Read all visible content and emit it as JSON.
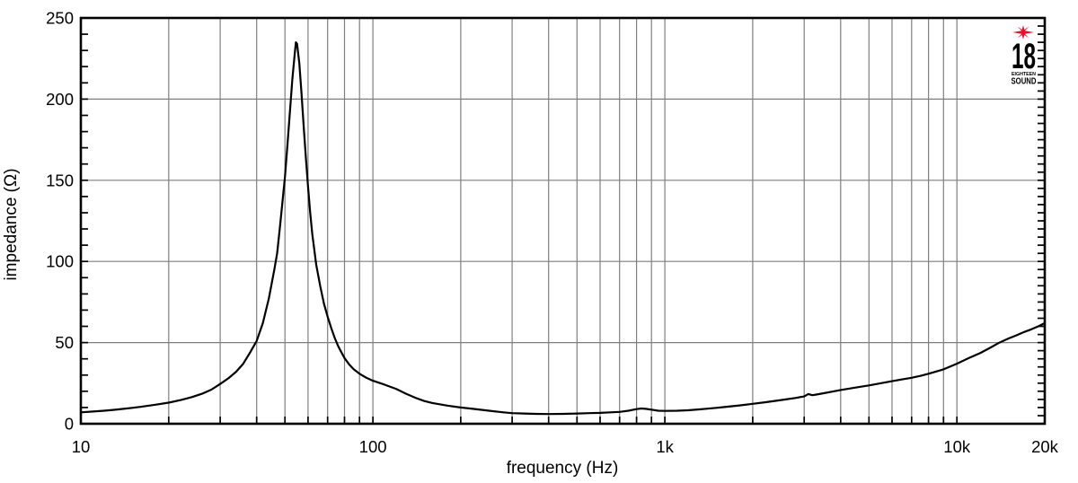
{
  "page": {
    "background": "#ffffff"
  },
  "colors": {
    "grid": "#7f7f7f",
    "axis": "#000000",
    "curve": "#000000",
    "background": "#ffffff",
    "logo_red": "#e8112d",
    "logo_black": "#111111"
  },
  "logo": {
    "star_icon": "starburst",
    "number": "18",
    "name_top": "EIGHTEEN",
    "name_bottom": "SOUND"
  },
  "chart_data": {
    "type": "line",
    "title": "",
    "xlabel": "frequency (Hz)",
    "ylabel": "impedance (Ω)",
    "x_scale": "log",
    "xlim": [
      10,
      20000
    ],
    "ylim": [
      0,
      250
    ],
    "grid": true,
    "legend_position": "none",
    "x_major_ticks": [
      {
        "value": 10,
        "label": "10"
      },
      {
        "value": 100,
        "label": "100"
      },
      {
        "value": 1000,
        "label": "1k"
      },
      {
        "value": 10000,
        "label": "10k"
      },
      {
        "value": 20000,
        "label": "20k"
      }
    ],
    "x_gridlines": [
      20,
      30,
      40,
      50,
      60,
      70,
      80,
      90,
      100,
      200,
      300,
      400,
      500,
      600,
      700,
      800,
      900,
      1000,
      2000,
      3000,
      4000,
      5000,
      6000,
      7000,
      8000,
      9000,
      10000,
      20000
    ],
    "y_major_ticks": [
      {
        "value": 0,
        "label": "0"
      },
      {
        "value": 50,
        "label": "50"
      },
      {
        "value": 100,
        "label": "100"
      },
      {
        "value": 150,
        "label": "150"
      },
      {
        "value": 200,
        "label": "200"
      },
      {
        "value": 250,
        "label": "250"
      }
    ],
    "y_gridlines": [
      50,
      100,
      150,
      200
    ],
    "y_minor_tick_step_left": 10,
    "y_minor_tick_step_right": 5,
    "series": [
      {
        "name": "impedance",
        "color": "#000000",
        "points": [
          [
            10,
            7
          ],
          [
            11,
            7.5
          ],
          [
            12,
            8
          ],
          [
            13,
            8.6
          ],
          [
            14,
            9.2
          ],
          [
            15,
            9.8
          ],
          [
            16,
            10.4
          ],
          [
            18,
            11.7
          ],
          [
            20,
            13
          ],
          [
            22,
            14.6
          ],
          [
            24,
            16.4
          ],
          [
            26,
            18.5
          ],
          [
            28,
            21
          ],
          [
            30,
            24.5
          ],
          [
            32,
            28
          ],
          [
            34,
            32
          ],
          [
            36,
            37
          ],
          [
            38,
            44
          ],
          [
            40,
            51
          ],
          [
            42,
            62
          ],
          [
            44,
            77
          ],
          [
            46,
            95
          ],
          [
            47,
            105
          ],
          [
            48,
            120
          ],
          [
            49,
            136
          ],
          [
            50,
            152
          ],
          [
            51,
            172
          ],
          [
            52,
            192
          ],
          [
            53,
            212
          ],
          [
            54,
            228
          ],
          [
            54.5,
            235
          ],
          [
            55,
            234
          ],
          [
            56,
            222
          ],
          [
            57,
            203
          ],
          [
            58,
            182
          ],
          [
            59,
            163
          ],
          [
            60,
            146
          ],
          [
            61,
            130
          ],
          [
            62,
            117
          ],
          [
            64,
            98
          ],
          [
            66,
            85
          ],
          [
            68,
            74
          ],
          [
            70,
            66
          ],
          [
            72,
            59
          ],
          [
            74,
            53
          ],
          [
            76,
            48
          ],
          [
            78,
            44
          ],
          [
            80,
            40.5
          ],
          [
            83,
            36.5
          ],
          [
            86,
            33.5
          ],
          [
            90,
            30.8
          ],
          [
            95,
            28.3
          ],
          [
            100,
            26.5
          ],
          [
            110,
            24
          ],
          [
            120,
            21.5
          ],
          [
            130,
            18.5
          ],
          [
            140,
            16
          ],
          [
            150,
            14
          ],
          [
            160,
            12.8
          ],
          [
            180,
            11.2
          ],
          [
            200,
            10
          ],
          [
            220,
            9.2
          ],
          [
            250,
            8
          ],
          [
            280,
            7
          ],
          [
            300,
            6.5
          ],
          [
            330,
            6.3
          ],
          [
            360,
            6.1
          ],
          [
            400,
            6
          ],
          [
            450,
            6.1
          ],
          [
            500,
            6.3
          ],
          [
            550,
            6.5
          ],
          [
            600,
            6.7
          ],
          [
            650,
            7
          ],
          [
            700,
            7.3
          ],
          [
            750,
            8
          ],
          [
            800,
            9
          ],
          [
            830,
            9.4
          ],
          [
            860,
            9.2
          ],
          [
            900,
            8.7
          ],
          [
            950,
            8
          ],
          [
            1000,
            7.9
          ],
          [
            1100,
            8
          ],
          [
            1200,
            8.3
          ],
          [
            1300,
            8.8
          ],
          [
            1400,
            9.3
          ],
          [
            1500,
            9.8
          ],
          [
            1600,
            10.3
          ],
          [
            1800,
            11.3
          ],
          [
            2000,
            12.3
          ],
          [
            2200,
            13.2
          ],
          [
            2500,
            14.6
          ],
          [
            2800,
            15.9
          ],
          [
            3000,
            16.8
          ],
          [
            3100,
            18.3
          ],
          [
            3200,
            17.6
          ],
          [
            3300,
            18
          ],
          [
            3500,
            18.8
          ],
          [
            3800,
            20
          ],
          [
            4000,
            20.8
          ],
          [
            4500,
            22.3
          ],
          [
            5000,
            23.6
          ],
          [
            5500,
            25
          ],
          [
            6000,
            26.2
          ],
          [
            6500,
            27.3
          ],
          [
            7000,
            28.3
          ],
          [
            7500,
            29.5
          ],
          [
            8000,
            30.8
          ],
          [
            9000,
            33.5
          ],
          [
            10000,
            37
          ],
          [
            11000,
            40.5
          ],
          [
            12000,
            43.5
          ],
          [
            13000,
            46.8
          ],
          [
            14000,
            50
          ],
          [
            15000,
            52.5
          ],
          [
            16000,
            54.5
          ],
          [
            17000,
            56.5
          ],
          [
            18000,
            58.2
          ],
          [
            19000,
            60
          ],
          [
            20000,
            62
          ]
        ]
      }
    ]
  }
}
